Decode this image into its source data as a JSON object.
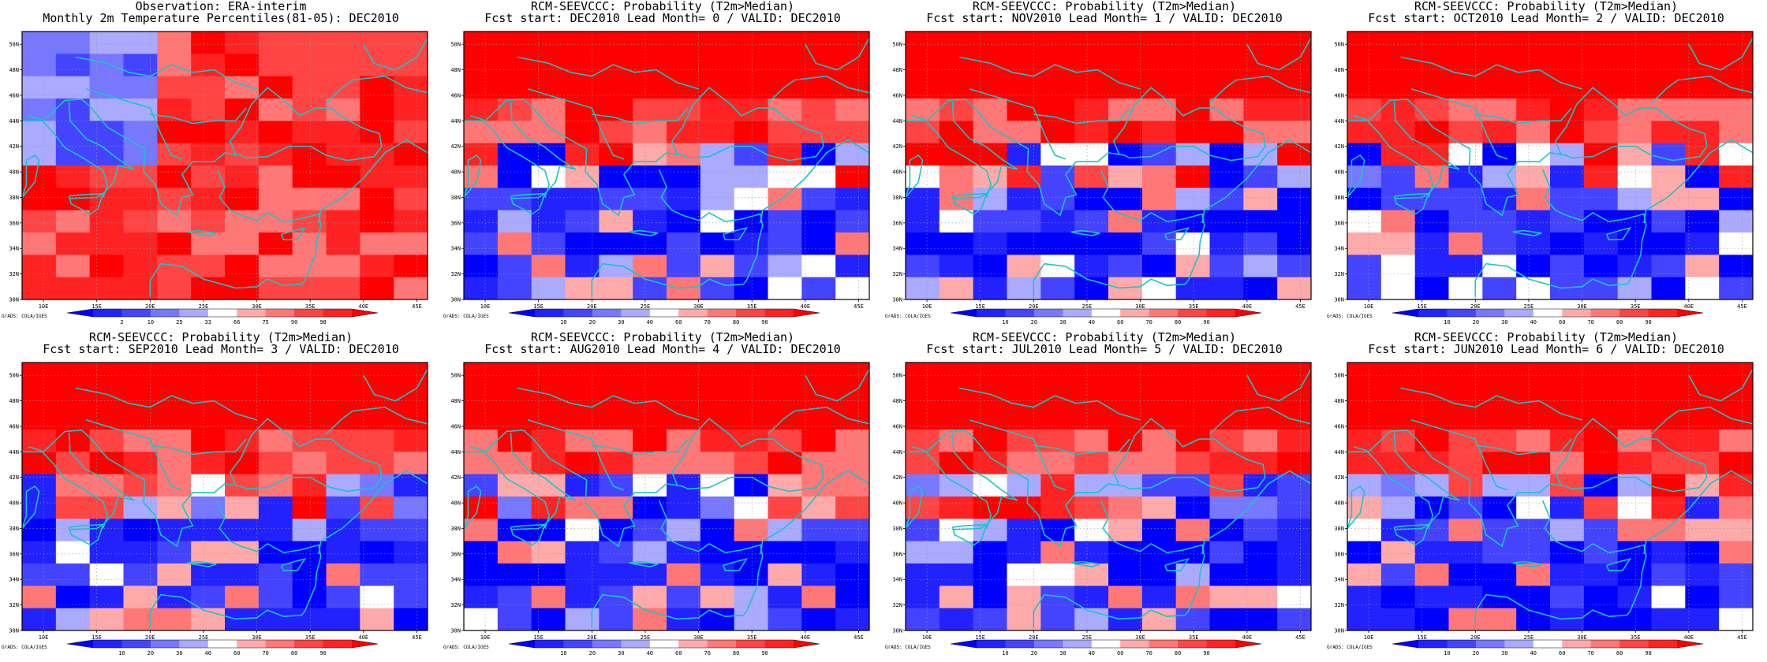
{
  "grid": {
    "lon_ticks": [
      "10E",
      "15E",
      "20E",
      "25E",
      "30E",
      "35E",
      "40E",
      "45E"
    ],
    "lat_ticks": [
      "50N",
      "48N",
      "46N",
      "44N",
      "42N",
      "40N",
      "38N",
      "36N",
      "34N",
      "32N",
      "30N"
    ]
  },
  "colors": {
    "coast": "#19c5c8",
    "ocean_bg": "#ffffff",
    "frame": "#000000"
  },
  "panels": [
    {
      "title1": "Observation: ERA-interim",
      "title2": "Monthly 2m Temperature Percentiles(81-05): DEC2010",
      "colorbar_labels": [
        "2",
        "10",
        "25",
        "33",
        "66",
        "75",
        "90",
        "98"
      ],
      "colorbar_colors": [
        "#0000ff",
        "#2222ff",
        "#4444ff",
        "#7777ff",
        "#aaaaff",
        "#ffffff",
        "#ffaaaa",
        "#ff7777",
        "#ff4444",
        "#ff2222",
        "#ff0000"
      ],
      "grads_label": "GrADS: COLA/IGES"
    },
    {
      "title1": "RCM-SEEVCCC: Probability (T2m>Median)",
      "title2": "Fcst start: DEC2010  Lead Month= 0 / VALID: DEC2010",
      "colorbar_labels": [
        "10",
        "20",
        "30",
        "40",
        "60",
        "70",
        "80",
        "90"
      ],
      "colorbar_colors": [
        "#0000ff",
        "#2222ff",
        "#4444ff",
        "#7777ff",
        "#aaaaff",
        "#ffffff",
        "#ffaaaa",
        "#ff7777",
        "#ff4444",
        "#ff2222",
        "#ff0000"
      ],
      "grads_label": "GrADS: COLA/IGES"
    },
    {
      "title1": "RCM-SEEVCCC: Probability (T2m>Median)",
      "title2": "Fcst start: NOV2010  Lead Month= 1 / VALID: DEC2010",
      "colorbar_labels": [
        "10",
        "20",
        "30",
        "40",
        "60",
        "70",
        "80",
        "90"
      ],
      "colorbar_colors": [
        "#0000ff",
        "#2222ff",
        "#4444ff",
        "#7777ff",
        "#aaaaff",
        "#ffffff",
        "#ffaaaa",
        "#ff7777",
        "#ff4444",
        "#ff2222",
        "#ff0000"
      ],
      "grads_label": "GrADS: COLA/IGES"
    },
    {
      "title1": "RCM-SEEVCCC: Probability (T2m>Median)",
      "title2": "Fcst start: OCT2010  Lead Month= 2 / VALID: DEC2010",
      "colorbar_labels": [
        "10",
        "20",
        "30",
        "40",
        "60",
        "70",
        "80",
        "90"
      ],
      "colorbar_colors": [
        "#0000ff",
        "#2222ff",
        "#4444ff",
        "#7777ff",
        "#aaaaff",
        "#ffffff",
        "#ffaaaa",
        "#ff7777",
        "#ff4444",
        "#ff2222",
        "#ff0000"
      ],
      "grads_label": "GrADS: COLA/IGES"
    },
    {
      "title1": "RCM-SEEVCCC: Probability (T2m>Median)",
      "title2": "Fcst start: SEP2010  Lead Month= 3 / VALID: DEC2010",
      "colorbar_labels": [
        "10",
        "20",
        "30",
        "40",
        "60",
        "70",
        "80",
        "90"
      ],
      "colorbar_colors": [
        "#0000ff",
        "#2222ff",
        "#4444ff",
        "#7777ff",
        "#aaaaff",
        "#ffffff",
        "#ffaaaa",
        "#ff7777",
        "#ff4444",
        "#ff2222",
        "#ff0000"
      ],
      "grads_label": "GrADS: COLA/IGES"
    },
    {
      "title1": "RCM-SEEVCCC: Probability (T2m>Median)",
      "title2": "Fcst start: AUG2010  Lead Month= 4 / VALID: DEC2010",
      "colorbar_labels": [
        "10",
        "20",
        "30",
        "40",
        "60",
        "70",
        "80",
        "90"
      ],
      "colorbar_colors": [
        "#0000ff",
        "#2222ff",
        "#4444ff",
        "#7777ff",
        "#aaaaff",
        "#ffffff",
        "#ffaaaa",
        "#ff7777",
        "#ff4444",
        "#ff2222",
        "#ff0000"
      ],
      "grads_label": "GrADS: COLA/IGES"
    },
    {
      "title1": "RCM-SEEVCCC: Probability (T2m>Median)",
      "title2": "Fcst start: JUL2010  Lead Month= 5 / VALID: DEC2010",
      "colorbar_labels": [
        "10",
        "20",
        "30",
        "40",
        "60",
        "70",
        "80",
        "90"
      ],
      "colorbar_colors": [
        "#0000ff",
        "#2222ff",
        "#4444ff",
        "#7777ff",
        "#aaaaff",
        "#ffffff",
        "#ffaaaa",
        "#ff7777",
        "#ff4444",
        "#ff2222",
        "#ff0000"
      ],
      "grads_label": "GrADS: COLA/IGES"
    },
    {
      "title1": "RCM-SEEVCCC: Probability (T2m>Median)",
      "title2": "Fcst start: JUN2010  Lead Month= 6 / VALID: DEC2010",
      "colorbar_labels": [
        "10",
        "20",
        "30",
        "40",
        "60",
        "70",
        "80",
        "90"
      ],
      "colorbar_colors": [
        "#0000ff",
        "#2222ff",
        "#4444ff",
        "#7777ff",
        "#aaaaff",
        "#ffffff",
        "#ffaaaa",
        "#ff7777",
        "#ff4444",
        "#ff2222",
        "#ff0000"
      ],
      "grads_label": "GrADS: COLA/IGES"
    }
  ]
}
